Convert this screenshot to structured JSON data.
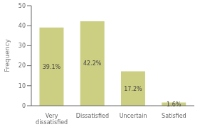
{
  "chart_data": {
    "type": "bar",
    "ylabel": "Frequency",
    "categories": [
      "Very dissatisfied",
      "Dissatisfied",
      "Uncertain",
      "Satisfied"
    ],
    "values": [
      39.1,
      42.2,
      17.2,
      1.6
    ],
    "value_labels": [
      "39.1%",
      "42.2%",
      "17.2%",
      "1.6%"
    ],
    "data_labels": true,
    "color": "#cccf82",
    "ylim": [
      0,
      50
    ],
    "yticks": [
      0,
      10,
      20,
      30,
      40,
      50
    ],
    "grid": false
  }
}
